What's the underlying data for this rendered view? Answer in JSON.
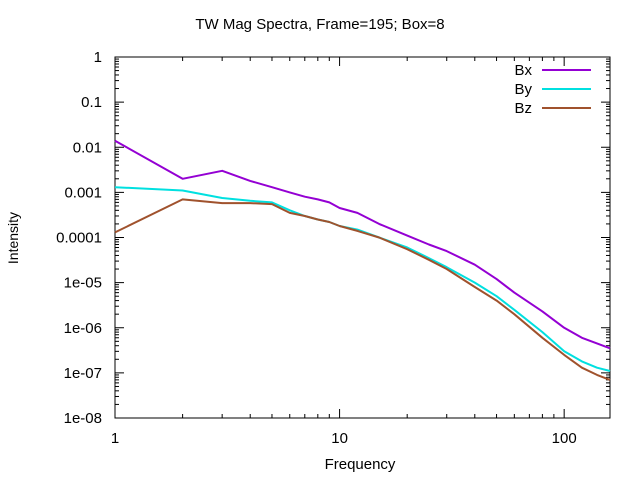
{
  "chart_data": {
    "type": "line",
    "title": "TW Mag Spectra, Frame=195; Box=8",
    "xlabel": "Frequency",
    "ylabel": "Intensity",
    "xscale": "log",
    "yscale": "log",
    "xlim": [
      1,
      160
    ],
    "ylim": [
      1e-08,
      1
    ],
    "xticks": [
      {
        "value": 1,
        "label": "1"
      },
      {
        "value": 10,
        "label": "10"
      },
      {
        "value": 100,
        "label": "100"
      }
    ],
    "yticks": [
      {
        "value": 1,
        "label": "1"
      },
      {
        "value": 0.1,
        "label": "0.1"
      },
      {
        "value": 0.01,
        "label": "0.01"
      },
      {
        "value": 0.001,
        "label": "0.001"
      },
      {
        "value": 0.0001,
        "label": "0.0001"
      },
      {
        "value": 1e-05,
        "label": "1e-05"
      },
      {
        "value": 1e-06,
        "label": "1e-06"
      },
      {
        "value": 1e-07,
        "label": "1e-07"
      },
      {
        "value": 1e-08,
        "label": "1e-08"
      }
    ],
    "grid": false,
    "legend": "top-right",
    "series": [
      {
        "name": "Bx",
        "color": "#9400d3",
        "x": [
          1,
          2,
          3,
          4,
          5,
          6,
          7,
          8,
          9,
          10,
          12,
          15,
          20,
          25,
          30,
          40,
          50,
          60,
          80,
          100,
          120,
          140,
          160
        ],
        "y": [
          0.014,
          0.002,
          0.003,
          0.0018,
          0.0013,
          0.001,
          0.0008,
          0.0007,
          0.0006,
          0.00045,
          0.00035,
          0.0002,
          0.00011,
          7e-05,
          5e-05,
          2.5e-05,
          1.2e-05,
          6e-06,
          2.3e-06,
          1e-06,
          6e-07,
          4.5e-07,
          3.5e-07
        ]
      },
      {
        "name": "By",
        "color": "#00e0e0",
        "x": [
          1,
          2,
          3,
          4,
          5,
          6,
          7,
          8,
          9,
          10,
          12,
          15,
          20,
          25,
          30,
          40,
          50,
          60,
          80,
          100,
          120,
          140,
          160
        ],
        "y": [
          0.0013,
          0.0011,
          0.00075,
          0.00065,
          0.0006,
          0.0004,
          0.0003,
          0.00025,
          0.00022,
          0.00018,
          0.00015,
          0.0001,
          6e-05,
          3.5e-05,
          2.2e-05,
          1e-05,
          5e-06,
          2.5e-06,
          8e-07,
          3e-07,
          1.8e-07,
          1.3e-07,
          1.1e-07
        ]
      },
      {
        "name": "Bz",
        "color": "#a0522d",
        "x": [
          1,
          2,
          3,
          4,
          5,
          6,
          7,
          8,
          9,
          10,
          12,
          15,
          20,
          25,
          30,
          40,
          50,
          60,
          80,
          100,
          120,
          140,
          160
        ],
        "y": [
          0.00013,
          0.0007,
          0.00058,
          0.00058,
          0.00055,
          0.00035,
          0.0003,
          0.00025,
          0.00022,
          0.00018,
          0.00014,
          0.0001,
          5.5e-05,
          3.2e-05,
          2e-05,
          8e-06,
          4e-06,
          2e-06,
          6e-07,
          2.5e-07,
          1.3e-07,
          9e-08,
          7e-08
        ]
      }
    ]
  }
}
